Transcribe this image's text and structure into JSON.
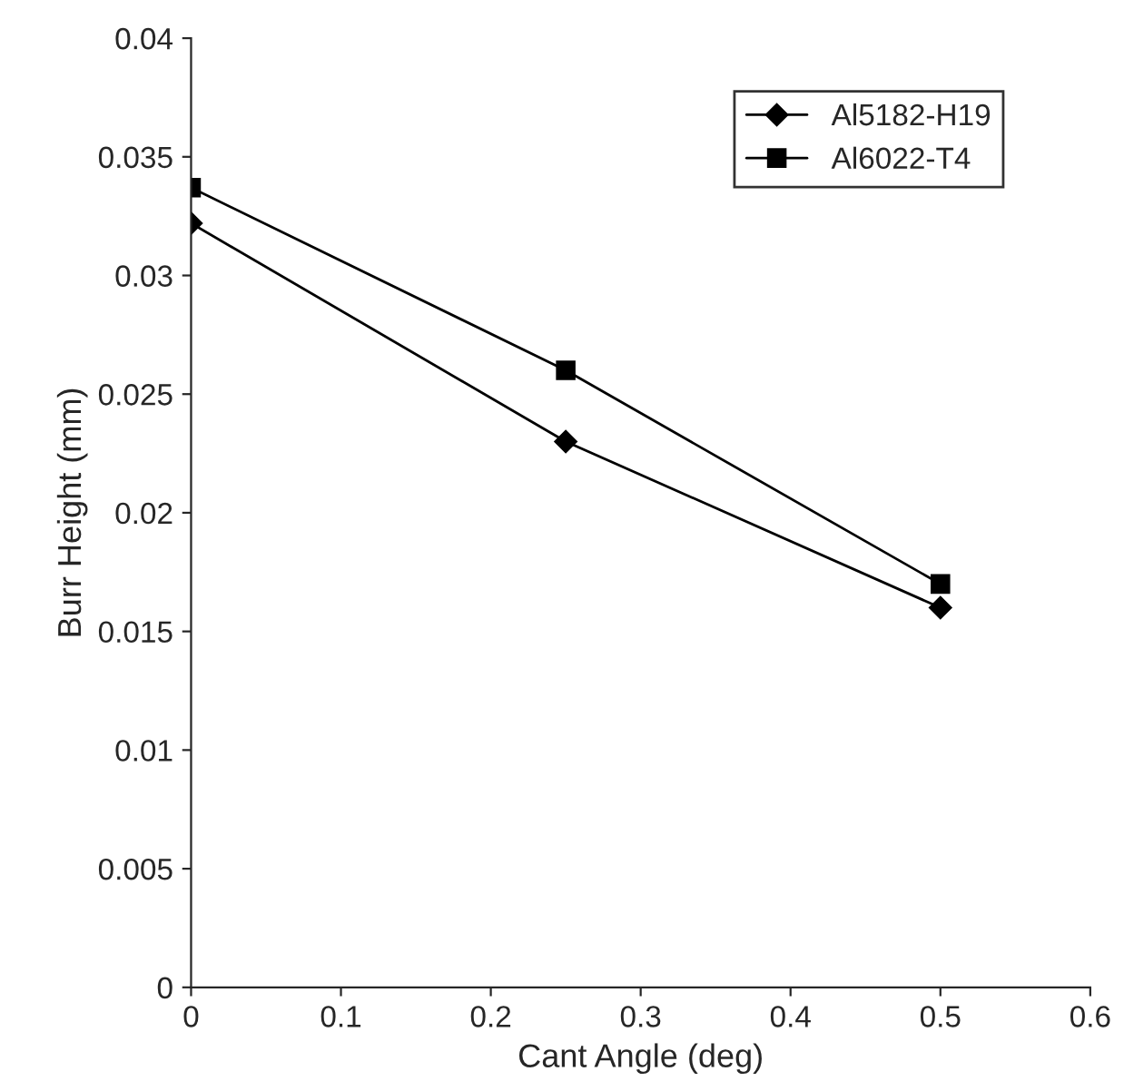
{
  "chart_data": {
    "type": "line",
    "xlabel": "Cant Angle (deg)",
    "ylabel": "Burr Height (mm)",
    "x": [
      0,
      0.25,
      0.5
    ],
    "series": [
      {
        "name": "Al5182-H19",
        "color": "#000000",
        "marker": "diamond",
        "values": [
          0.0322,
          0.023,
          0.016
        ]
      },
      {
        "name": "Al6022-T4",
        "color": "#000000",
        "marker": "square",
        "values": [
          0.0337,
          0.026,
          0.017
        ]
      }
    ],
    "xlim": [
      0,
      0.6
    ],
    "xticks": [
      0,
      0.1,
      0.2,
      0.3,
      0.4,
      0.5,
      0.6
    ],
    "ylim": [
      0,
      0.04
    ],
    "yticks": [
      0,
      0.005,
      0.01,
      0.015,
      0.02,
      0.025,
      0.03,
      0.035,
      0.04
    ],
    "grid": false,
    "legend": "top right",
    "line_style": "solid"
  }
}
